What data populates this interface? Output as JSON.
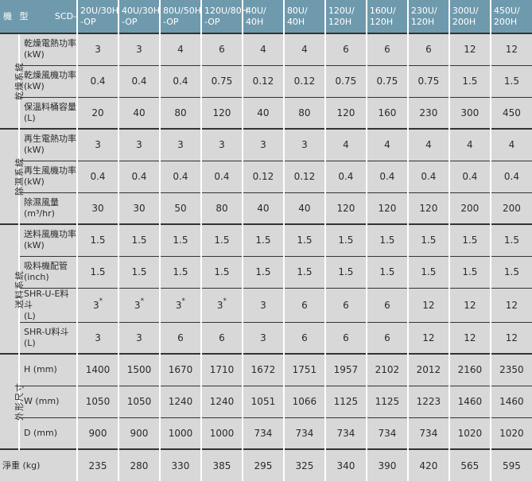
{
  "header": {
    "machine_label": "機",
    "type_label": "型",
    "prefix": "SCD-",
    "models": [
      [
        "20U/30H",
        "-OP"
      ],
      [
        "40U/30H",
        "-OP"
      ],
      [
        "80U/50H",
        "-OP"
      ],
      [
        "120U/80H",
        "-OP"
      ],
      [
        "40U/",
        "40H"
      ],
      [
        "80U/",
        "40H"
      ],
      [
        "120U/",
        "120H"
      ],
      [
        "160U/",
        "120H"
      ],
      [
        "230U/",
        "120H"
      ],
      [
        "300U/",
        "200H"
      ],
      [
        "450U/",
        "200H"
      ]
    ]
  },
  "groups": [
    {
      "name": "乾燥系統",
      "rows": [
        {
          "label": [
            "乾燥電熱功率",
            "(kW)"
          ],
          "values": [
            "3",
            "3",
            "4",
            "6",
            "4",
            "4",
            "6",
            "6",
            "6",
            "12",
            "12"
          ]
        },
        {
          "label": [
            "乾燥風機功率",
            "(kW)"
          ],
          "values": [
            "0.4",
            "0.4",
            "0.4",
            "0.75",
            "0.12",
            "0.12",
            "0.75",
            "0.75",
            "0.75",
            "1.5",
            "1.5"
          ]
        },
        {
          "label": [
            "保溫料桶容量",
            "(L)"
          ],
          "values": [
            "20",
            "40",
            "80",
            "120",
            "40",
            "80",
            "120",
            "160",
            "230",
            "300",
            "450"
          ]
        }
      ]
    },
    {
      "name": "除濕系統",
      "rows": [
        {
          "label": [
            "再生電熱功率",
            "(kW)"
          ],
          "values": [
            "3",
            "3",
            "3",
            "3",
            "3",
            "3",
            "4",
            "4",
            "4",
            "4",
            "4"
          ]
        },
        {
          "label": [
            "再生風機功率",
            "(kW)"
          ],
          "values": [
            "0.4",
            "0.4",
            "0.4",
            "0.4",
            "0.12",
            "0.12",
            "0.4",
            "0.4",
            "0.4",
            "0.4",
            "0.4"
          ]
        },
        {
          "label": [
            "除濕風量",
            "(m³/hr)"
          ],
          "values": [
            "30",
            "30",
            "50",
            "80",
            "40",
            "40",
            "120",
            "120",
            "120",
            "200",
            "200"
          ]
        }
      ]
    },
    {
      "name": "送料系統",
      "rows": [
        {
          "label": [
            "送料風機功率",
            "(kW)"
          ],
          "values": [
            "1.5",
            "1.5",
            "1.5",
            "1.5",
            "1.5",
            "1.5",
            "1.5",
            "1.5",
            "1.5",
            "1.5",
            "1.5"
          ]
        },
        {
          "label": [
            "吸料機配管",
            "(inch)"
          ],
          "values": [
            "1.5",
            "1.5",
            "1.5",
            "1.5",
            "1.5",
            "1.5",
            "1.5",
            "1.5",
            "1.5",
            "1.5",
            "1.5"
          ]
        },
        {
          "label": [
            "SHR-U-E料斗",
            "(L)"
          ],
          "values": [
            "3*",
            "3*",
            "3*",
            "3*",
            "3",
            "6",
            "6",
            "6",
            "12",
            "12",
            "12"
          ]
        },
        {
          "label": [
            "SHR-U料斗",
            "(L)"
          ],
          "values": [
            "3",
            "3",
            "6",
            "6",
            "3",
            "6",
            "6",
            "6",
            "12",
            "12",
            "12"
          ]
        }
      ]
    },
    {
      "name": "外形尺寸",
      "rows": [
        {
          "label": [
            "H (mm)"
          ],
          "values": [
            "1400",
            "1500",
            "1670",
            "1710",
            "1672",
            "1751",
            "1957",
            "2102",
            "2012",
            "2160",
            "2350"
          ]
        },
        {
          "label": [
            "W (mm)"
          ],
          "values": [
            "1050",
            "1050",
            "1240",
            "1240",
            "1051",
            "1066",
            "1125",
            "1125",
            "1223",
            "1460",
            "1460"
          ]
        },
        {
          "label": [
            "D (mm)"
          ],
          "values": [
            "900",
            "900",
            "1000",
            "1000",
            "734",
            "734",
            "734",
            "734",
            "734",
            "1020",
            "1020"
          ]
        }
      ]
    }
  ],
  "weight": {
    "label": "淨重 (kg)",
    "values": [
      "235",
      "280",
      "330",
      "385",
      "295",
      "325",
      "340",
      "390",
      "420",
      "565",
      "595"
    ]
  },
  "colors": {
    "header_bg": "#6f9aad",
    "body_bg": "#d8d8d8",
    "rule": "#333333"
  }
}
